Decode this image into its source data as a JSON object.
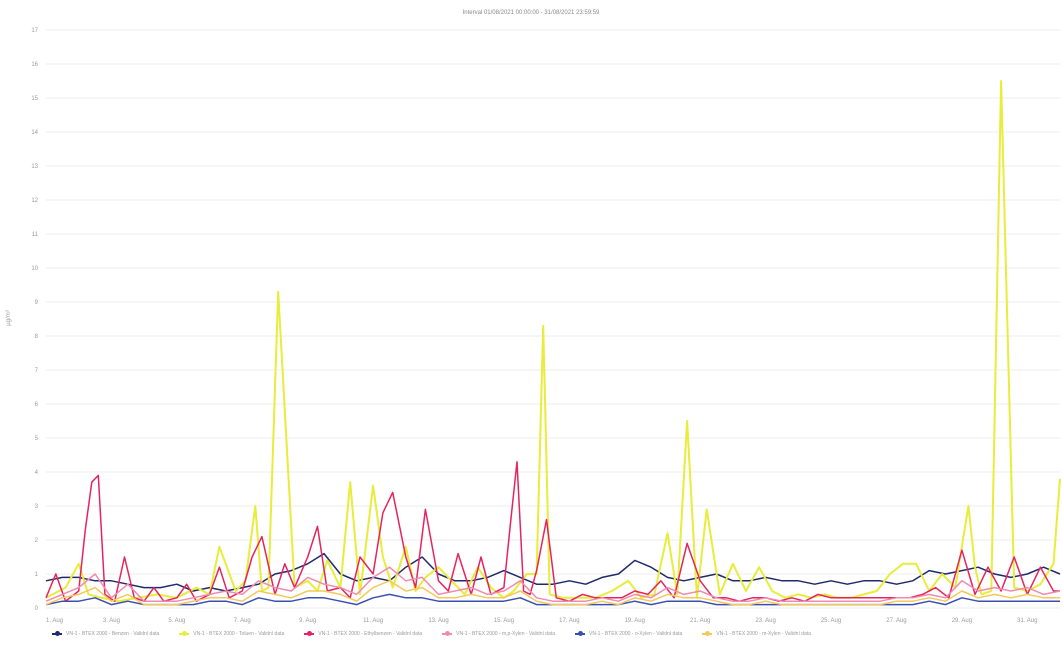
{
  "chart_data": {
    "type": "line",
    "title": "Interval 01/08/2021 00:00:00 - 31/08/2021 23:59:59",
    "ylabel": "µg/m³",
    "ylim": [
      0,
      17
    ],
    "yticks": [
      0,
      1,
      2,
      3,
      4,
      5,
      6,
      7,
      8,
      9,
      10,
      11,
      12,
      13,
      14,
      15,
      16,
      17
    ],
    "xlim": [
      1,
      32
    ],
    "xticks": [
      {
        "pos": 1,
        "label": "1. Aug"
      },
      {
        "pos": 3,
        "label": "3. Aug"
      },
      {
        "pos": 5,
        "label": "5. Aug"
      },
      {
        "pos": 7,
        "label": "7. Aug"
      },
      {
        "pos": 9,
        "label": "9. Aug"
      },
      {
        "pos": 11,
        "label": "11. Aug"
      },
      {
        "pos": 13,
        "label": "13. Aug"
      },
      {
        "pos": 15,
        "label": "15. Aug"
      },
      {
        "pos": 17,
        "label": "17. Aug"
      },
      {
        "pos": 19,
        "label": "19. Aug"
      },
      {
        "pos": 21,
        "label": "21. Aug"
      },
      {
        "pos": 23,
        "label": "23. Aug"
      },
      {
        "pos": 25,
        "label": "25. Aug"
      },
      {
        "pos": 27,
        "label": "27. Aug"
      },
      {
        "pos": 29,
        "label": "29. Aug"
      },
      {
        "pos": 31,
        "label": "31. Aug"
      }
    ],
    "grid": true,
    "legend_position": "bottom",
    "series": [
      {
        "name": "VN-1 - BTEX 2000 - Benzen - Validní data",
        "color": "#1f2a6b",
        "x": [
          1,
          1.5,
          2,
          2.5,
          3,
          3.5,
          4,
          4.5,
          5,
          5.5,
          6,
          6.5,
          7,
          7.5,
          8,
          8.5,
          9,
          9.5,
          10,
          10.5,
          11,
          11.5,
          12,
          12.5,
          13,
          13.5,
          14,
          14.5,
          15,
          15.5,
          16,
          16.5,
          17,
          17.5,
          18,
          18.5,
          19,
          19.5,
          20,
          20.5,
          21,
          21.5,
          22,
          22.5,
          23,
          23.5,
          24,
          24.5,
          25,
          25.5,
          26,
          26.5,
          27,
          27.5,
          28,
          28.5,
          29,
          29.5,
          30,
          30.5,
          31,
          31.5,
          32
        ],
        "y": [
          0.8,
          0.9,
          0.9,
          0.8,
          0.8,
          0.7,
          0.6,
          0.6,
          0.7,
          0.5,
          0.6,
          0.5,
          0.6,
          0.7,
          1.0,
          1.1,
          1.3,
          1.6,
          1.0,
          0.8,
          0.9,
          0.8,
          1.2,
          1.5,
          1.0,
          0.8,
          0.8,
          0.9,
          1.1,
          0.9,
          0.7,
          0.7,
          0.8,
          0.7,
          0.9,
          1.0,
          1.4,
          1.2,
          0.9,
          0.8,
          0.9,
          1.0,
          0.8,
          0.8,
          0.9,
          0.8,
          0.8,
          0.7,
          0.8,
          0.7,
          0.8,
          0.8,
          0.7,
          0.8,
          1.1,
          1.0,
          1.1,
          1.2,
          1.0,
          0.9,
          1.0,
          1.2,
          1.0
        ]
      },
      {
        "name": "VN-1 - BTEX 2000 - Toluen - Validní data",
        "color": "#e8ec3a",
        "x": [
          1,
          1.6,
          2,
          2.3,
          2.7,
          3.2,
          3.8,
          4.4,
          5,
          5.6,
          6,
          6.3,
          6.8,
          7.1,
          7.4,
          7.6,
          7.8,
          8.1,
          8.6,
          9,
          9.3,
          9.6,
          10,
          10.3,
          10.6,
          11,
          11.3,
          11.6,
          12,
          12.3,
          12.6,
          13,
          13.4,
          13.8,
          14.2,
          14.6,
          15,
          15.3,
          15.7,
          16,
          16.2,
          16.4,
          16.8,
          17.3,
          17.8,
          18.3,
          18.8,
          19.2,
          19.6,
          20,
          20.3,
          20.6,
          20.9,
          21.2,
          21.6,
          22,
          22.4,
          22.8,
          23.2,
          23.6,
          24,
          24.4,
          24.8,
          25.2,
          25.6,
          26,
          26.4,
          26.8,
          27.2,
          27.6,
          28,
          28.4,
          28.8,
          29.2,
          29.4,
          29.6,
          29.9,
          30.2,
          30.6,
          31,
          31.4,
          31.8,
          32
        ],
        "y": [
          0.3,
          0.6,
          1.3,
          0.4,
          0.3,
          0.2,
          0.3,
          0.4,
          0.3,
          0.6,
          0.4,
          1.8,
          0.5,
          0.8,
          3.0,
          0.5,
          0.6,
          9.3,
          0.6,
          0.8,
          0.5,
          1.4,
          0.6,
          3.7,
          0.4,
          3.6,
          1.5,
          0.6,
          1.8,
          0.5,
          0.9,
          1.2,
          0.8,
          0.4,
          1.2,
          0.6,
          0.3,
          0.5,
          1.0,
          1.0,
          8.3,
          0.4,
          0.3,
          0.3,
          0.3,
          0.5,
          0.8,
          0.3,
          0.4,
          2.2,
          0.4,
          5.5,
          0.3,
          2.9,
          0.4,
          1.3,
          0.5,
          1.2,
          0.5,
          0.3,
          0.4,
          0.3,
          0.4,
          0.3,
          0.3,
          0.4,
          0.5,
          1.0,
          1.3,
          1.3,
          0.5,
          1.0,
          0.6,
          3.0,
          1.2,
          0.4,
          0.5,
          15.5,
          0.6,
          0.5,
          0.7,
          1.3,
          3.8
        ]
      },
      {
        "name": "VN-1 - BTEX 2000 - Ethylbenzen - Validní data",
        "color": "#e5245f",
        "x": [
          1,
          1.3,
          1.6,
          2,
          2.2,
          2.4,
          2.6,
          2.8,
          3.1,
          3.4,
          3.7,
          4,
          4.3,
          4.6,
          5,
          5.3,
          5.6,
          6,
          6.3,
          6.6,
          7,
          7.3,
          7.6,
          8,
          8.3,
          8.6,
          9,
          9.3,
          9.6,
          10,
          10.3,
          10.6,
          11,
          11.3,
          11.6,
          12,
          12.3,
          12.6,
          13,
          13.3,
          13.6,
          14,
          14.3,
          14.6,
          15,
          15.2,
          15.4,
          15.6,
          15.8,
          16,
          16.3,
          16.6,
          17,
          17.4,
          17.8,
          18.2,
          18.6,
          19,
          19.4,
          19.8,
          20.2,
          20.6,
          21,
          21.4,
          21.8,
          22.2,
          22.6,
          23,
          23.4,
          23.8,
          24.2,
          24.6,
          25,
          25.4,
          25.8,
          26.2,
          26.6,
          27,
          27.4,
          27.8,
          28.2,
          28.6,
          29,
          29.4,
          29.8,
          30.2,
          30.6,
          31,
          31.4,
          31.8,
          32
        ],
        "y": [
          0.3,
          1.0,
          0.2,
          0.5,
          2.3,
          3.7,
          3.9,
          0.4,
          0.2,
          1.5,
          0.3,
          0.2,
          0.6,
          0.2,
          0.3,
          0.7,
          0.2,
          0.4,
          1.2,
          0.3,
          0.5,
          1.5,
          2.1,
          0.4,
          1.3,
          0.6,
          1.5,
          2.4,
          0.5,
          0.6,
          0.3,
          1.5,
          1.0,
          2.8,
          3.4,
          1.5,
          0.6,
          2.9,
          0.8,
          0.5,
          1.6,
          0.4,
          1.5,
          0.4,
          0.6,
          2.5,
          4.3,
          0.5,
          0.4,
          1.1,
          2.6,
          0.3,
          0.2,
          0.4,
          0.3,
          0.3,
          0.3,
          0.5,
          0.4,
          0.8,
          0.3,
          1.9,
          0.8,
          0.3,
          0.3,
          0.2,
          0.3,
          0.3,
          0.2,
          0.3,
          0.2,
          0.4,
          0.3,
          0.3,
          0.3,
          0.3,
          0.3,
          0.3,
          0.3,
          0.4,
          0.6,
          0.3,
          1.7,
          0.4,
          1.2,
          0.5,
          1.5,
          0.4,
          1.2,
          0.5,
          0.5
        ]
      },
      {
        "name": "VN-1 - BTEX 2000 - m,p-Xylen - Validní data",
        "color": "#f08ab0",
        "x": [
          1,
          1.5,
          2,
          2.5,
          3,
          3.5,
          4,
          4.5,
          5,
          5.5,
          6,
          6.5,
          7,
          7.5,
          8,
          8.5,
          9,
          9.5,
          10,
          10.5,
          11,
          11.5,
          12,
          12.5,
          13,
          13.5,
          14,
          14.5,
          15,
          15.5,
          16,
          16.5,
          17,
          17.5,
          18,
          18.5,
          19,
          19.5,
          20,
          20.5,
          21,
          21.5,
          22,
          22.5,
          23,
          23.5,
          24,
          24.5,
          25,
          25.5,
          26,
          26.5,
          27,
          27.5,
          28,
          28.5,
          29,
          29.5,
          30,
          30.5,
          31,
          31.5,
          32
        ],
        "y": [
          0.2,
          0.4,
          0.6,
          1.0,
          0.3,
          0.7,
          0.2,
          0.2,
          0.2,
          0.3,
          0.4,
          0.5,
          0.4,
          0.8,
          0.6,
          0.5,
          0.9,
          0.7,
          0.6,
          0.4,
          0.9,
          1.2,
          0.8,
          0.9,
          0.4,
          0.5,
          0.6,
          0.4,
          0.5,
          0.8,
          0.3,
          0.2,
          0.2,
          0.2,
          0.3,
          0.2,
          0.4,
          0.3,
          0.6,
          0.4,
          0.5,
          0.3,
          0.2,
          0.2,
          0.3,
          0.2,
          0.2,
          0.2,
          0.2,
          0.2,
          0.2,
          0.2,
          0.3,
          0.3,
          0.4,
          0.3,
          0.8,
          0.5,
          0.6,
          0.5,
          0.6,
          0.4,
          0.5
        ]
      },
      {
        "name": "VN-1 - BTEX 2000 - o-Xylen - Validní data",
        "color": "#3a4fb0",
        "x": [
          1,
          1.5,
          2,
          2.5,
          3,
          3.5,
          4,
          4.5,
          5,
          5.5,
          6,
          6.5,
          7,
          7.5,
          8,
          8.5,
          9,
          9.5,
          10,
          10.5,
          11,
          11.5,
          12,
          12.5,
          13,
          13.5,
          14,
          14.5,
          15,
          15.5,
          16,
          16.5,
          17,
          17.5,
          18,
          18.5,
          19,
          19.5,
          20,
          20.5,
          21,
          21.5,
          22,
          22.5,
          23,
          23.5,
          24,
          24.5,
          25,
          25.5,
          26,
          26.5,
          27,
          27.5,
          28,
          28.5,
          29,
          29.5,
          30,
          30.5,
          31,
          31.5,
          32
        ],
        "y": [
          0.1,
          0.2,
          0.2,
          0.3,
          0.1,
          0.2,
          0.1,
          0.1,
          0.1,
          0.1,
          0.2,
          0.2,
          0.1,
          0.3,
          0.2,
          0.2,
          0.3,
          0.3,
          0.2,
          0.1,
          0.3,
          0.4,
          0.3,
          0.3,
          0.2,
          0.2,
          0.2,
          0.2,
          0.2,
          0.3,
          0.1,
          0.1,
          0.1,
          0.1,
          0.1,
          0.1,
          0.2,
          0.1,
          0.2,
          0.2,
          0.2,
          0.1,
          0.1,
          0.1,
          0.1,
          0.1,
          0.1,
          0.1,
          0.1,
          0.1,
          0.1,
          0.1,
          0.1,
          0.1,
          0.2,
          0.1,
          0.3,
          0.2,
          0.2,
          0.2,
          0.2,
          0.2,
          0.2
        ]
      },
      {
        "name": "VN-1 - BTEX 2000 - m-Xylen - Validní data",
        "color": "#f4c95a",
        "x": [
          1,
          1.5,
          2,
          2.5,
          3,
          3.5,
          4,
          4.5,
          5,
          5.5,
          6,
          6.5,
          7,
          7.5,
          8,
          8.5,
          9,
          9.5,
          10,
          10.5,
          11,
          11.5,
          12,
          12.5,
          13,
          13.5,
          14,
          14.5,
          15,
          15.5,
          16,
          16.5,
          17,
          17.5,
          18,
          18.5,
          19,
          19.5,
          20,
          20.5,
          21,
          21.5,
          22,
          22.5,
          23,
          23.5,
          24,
          24.5,
          25,
          25.5,
          26,
          26.5,
          27,
          27.5,
          28,
          28.5,
          29,
          29.5,
          30,
          30.5,
          31,
          31.5,
          32
        ],
        "y": [
          0.1,
          0.3,
          0.4,
          0.6,
          0.2,
          0.4,
          0.1,
          0.1,
          0.1,
          0.2,
          0.3,
          0.3,
          0.2,
          0.5,
          0.4,
          0.3,
          0.5,
          0.5,
          0.4,
          0.2,
          0.6,
          0.8,
          0.5,
          0.6,
          0.3,
          0.3,
          0.4,
          0.3,
          0.3,
          0.5,
          0.2,
          0.1,
          0.1,
          0.1,
          0.2,
          0.1,
          0.3,
          0.2,
          0.4,
          0.3,
          0.3,
          0.2,
          0.1,
          0.1,
          0.2,
          0.1,
          0.1,
          0.1,
          0.1,
          0.1,
          0.1,
          0.1,
          0.2,
          0.2,
          0.3,
          0.2,
          0.5,
          0.3,
          0.4,
          0.3,
          0.4,
          0.3,
          0.3
        ]
      }
    ]
  }
}
